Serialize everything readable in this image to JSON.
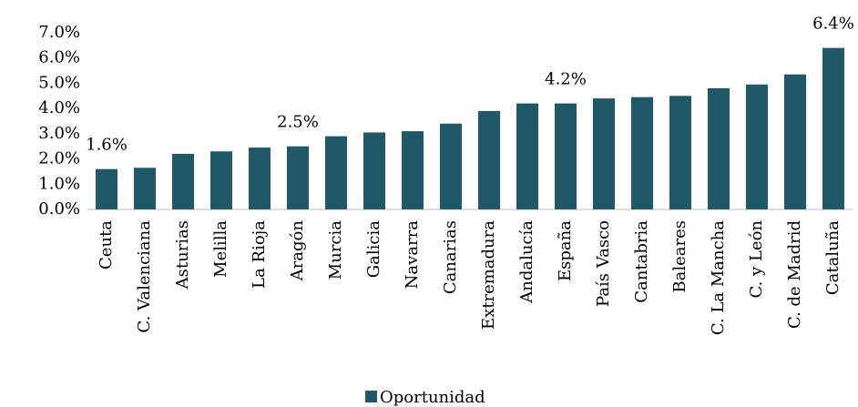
{
  "chart_data": {
    "type": "bar",
    "categories": [
      "Ceuta",
      "C. Valenciana",
      "Asturias",
      "Melilla",
      "La Rioja",
      "Aragón",
      "Murcia",
      "Galicia",
      "Navarra",
      "Canarias",
      "Extremadura",
      "Andalucía",
      "España",
      "País Vasco",
      "Cantabria",
      "Baleares",
      "C. La Mancha",
      "C. y León",
      "C. de Madrid",
      "Cataluña"
    ],
    "series": [
      {
        "name": "Oportunidad",
        "color": "#1f5868",
        "values": [
          1.6,
          1.65,
          2.2,
          2.3,
          2.45,
          2.5,
          2.9,
          3.05,
          3.1,
          3.4,
          3.9,
          4.2,
          4.2,
          4.4,
          4.45,
          4.5,
          4.8,
          4.95,
          5.35,
          6.4
        ],
        "value_labels": [
          "1.6%",
          null,
          null,
          null,
          null,
          "2.5%",
          null,
          null,
          null,
          null,
          null,
          null,
          "4.2%",
          null,
          null,
          null,
          null,
          null,
          null,
          "6.4%"
        ]
      }
    ],
    "ylim": [
      0,
      7
    ],
    "yticks": [
      {
        "value": 0,
        "label": "0.0%"
      },
      {
        "value": 1,
        "label": "1.0%"
      },
      {
        "value": 2,
        "label": "2.0%"
      },
      {
        "value": 3,
        "label": "3.0%"
      },
      {
        "value": 4,
        "label": "4.0%"
      },
      {
        "value": 5,
        "label": "5.0%"
      },
      {
        "value": 6,
        "label": "6.0%"
      },
      {
        "value": 7,
        "label": "7.0%"
      }
    ],
    "grid": false,
    "legend": "bottom"
  }
}
